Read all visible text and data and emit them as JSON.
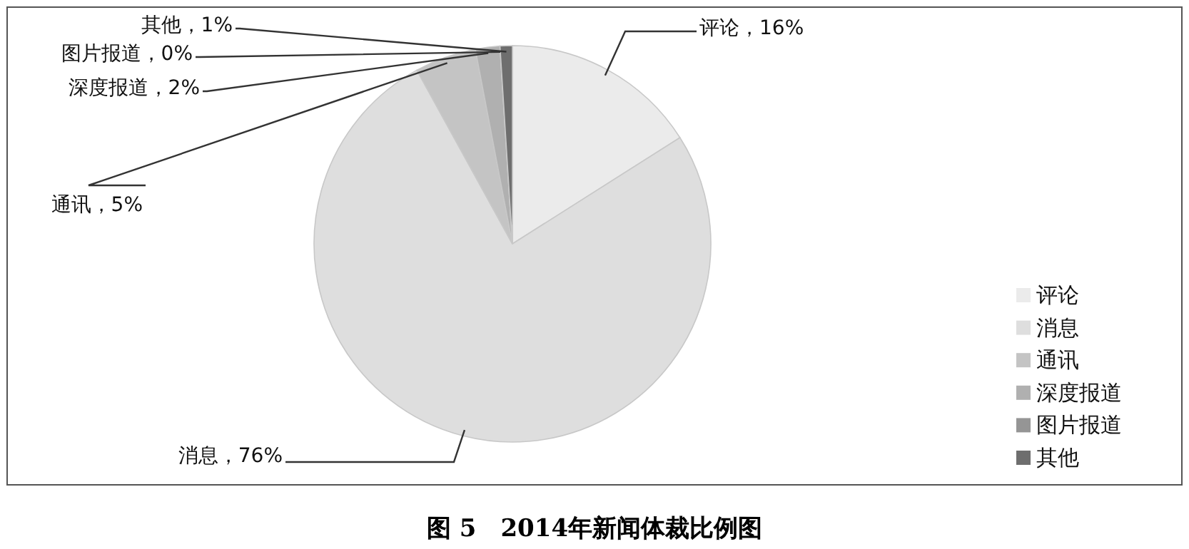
{
  "chart_data": {
    "type": "pie",
    "title": "图 5　2014年新闻体裁比例图",
    "categories": [
      "评论",
      "消息",
      "通讯",
      "深度报道",
      "图片报道",
      "其他"
    ],
    "values": [
      16,
      76,
      5,
      2,
      0,
      1
    ],
    "colors": [
      "#ebebeb",
      "#dedede",
      "#c4c4c4",
      "#b0b0b0",
      "#959595",
      "#6e6e6e"
    ],
    "value_labels": [
      "评论，16%",
      "消息，76%",
      "通讯，5%",
      "深度报道，2%",
      "图片报道，0%",
      "其他，1%"
    ],
    "legend": "bottom right"
  }
}
